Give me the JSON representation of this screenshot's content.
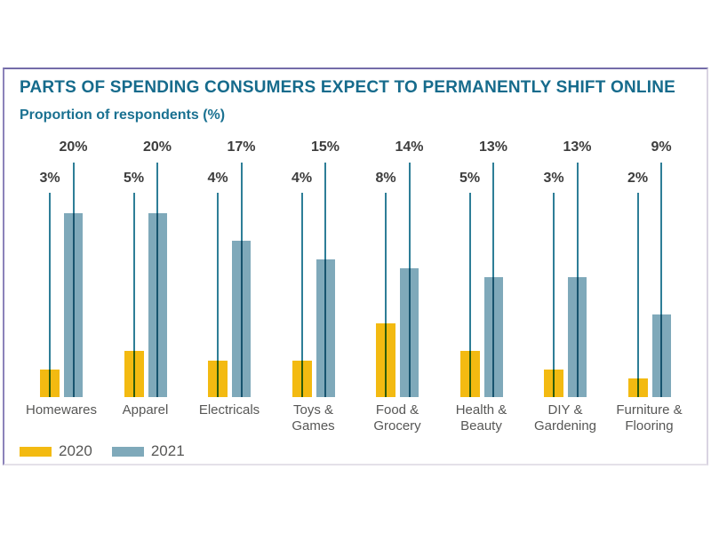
{
  "title": "PARTS OF SPENDING CONSUMERS EXPECT TO PERMANENTLY SHIFT ONLINE",
  "subtitle": "Proportion of respondents (%)",
  "colors": {
    "title_teal": "#166b8c",
    "bar_2020_yellow": "#f3ba11",
    "bar_2021_blue": "#7fa9ba",
    "leader_line_teal": "#2e7e97",
    "pct_label_gray": "#3d3d3d",
    "category_gray": "#575756",
    "panel_border_purple": "#746ca9"
  },
  "legend": {
    "items": [
      {
        "label": "2020",
        "color": "#f3ba11"
      },
      {
        "label": "2021",
        "color": "#7fa9ba"
      }
    ]
  },
  "chart_data": {
    "type": "bar",
    "title": "PARTS OF SPENDING CONSUMERS EXPECT TO PERMANENTLY SHIFT ONLINE",
    "subtitle": "Proportion of respondents (%)",
    "unit": "%",
    "categories": [
      "Homewares",
      "Apparel",
      "Electricals",
      "Toys & Games",
      "Food & Grocery",
      "Health & Beauty",
      "DIY & Gardening",
      "Furniture & Flooring"
    ],
    "categories_display": [
      "Homewares",
      "Apparel",
      "Electricals",
      "Toys &\nGames",
      "Food &\nGrocery",
      "Health &\nBeauty",
      "DIY &\nGardening",
      "Furniture &\nFlooring"
    ],
    "series": [
      {
        "name": "2020",
        "color": "#f3ba11",
        "values": [
          3,
          5,
          4,
          4,
          8,
          5,
          3,
          2
        ]
      },
      {
        "name": "2021",
        "color": "#7fa9ba",
        "values": [
          20,
          20,
          17,
          15,
          14,
          13,
          13,
          9
        ]
      }
    ],
    "data_labels": {
      "2020": [
        "3%",
        "5%",
        "4%",
        "4%",
        "8%",
        "5%",
        "3%",
        "2%"
      ],
      "2021": [
        "20%",
        "20%",
        "17%",
        "15%",
        "14%",
        "13%",
        "13%",
        "9%"
      ]
    },
    "ylim": [
      0,
      20
    ],
    "grid": false,
    "axes_shown": false,
    "legend_position": "bottom-left"
  }
}
